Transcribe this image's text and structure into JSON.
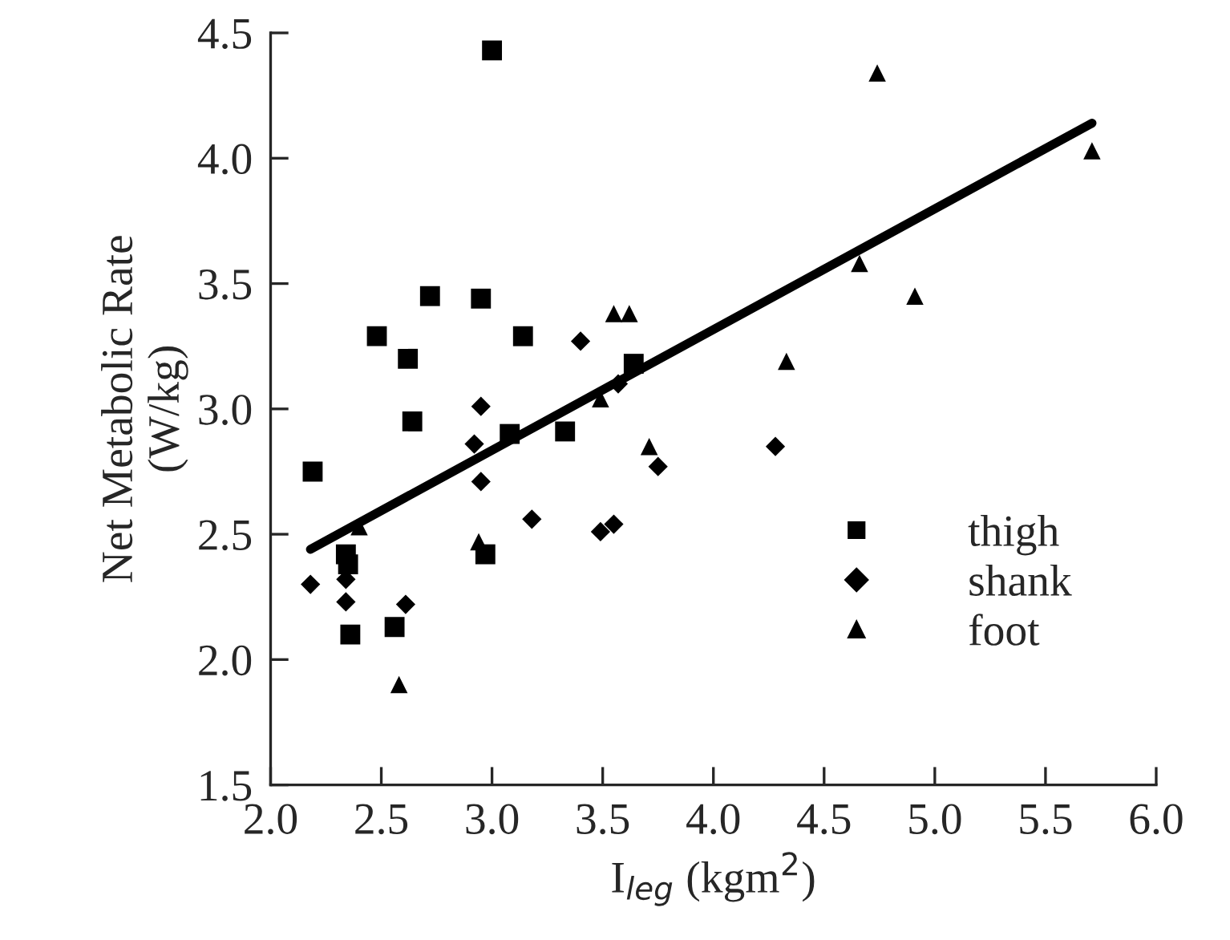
{
  "chart_data": {
    "type": "scatter",
    "xlabel": "I$_{leg}$ (kgm$^{2}$)",
    "ylabel": "Net Metabolic Rate\n(W/kg)",
    "xlim": [
      2.0,
      6.0
    ],
    "xticks": [
      {
        "value": 2.0,
        "label": "2.0"
      },
      {
        "value": 2.5,
        "label": "2.5"
      },
      {
        "value": 3.0,
        "label": "3.0"
      },
      {
        "value": 3.5,
        "label": "3.5"
      },
      {
        "value": 4.0,
        "label": "4.0"
      },
      {
        "value": 4.5,
        "label": "4.5"
      },
      {
        "value": 5.0,
        "label": "5.0"
      },
      {
        "value": 5.5,
        "label": "5.5"
      },
      {
        "value": 6.0,
        "label": "6.0"
      }
    ],
    "ylim": [
      1.5,
      4.5
    ],
    "yticks": [
      1.5,
      {
        "value": 2.0,
        "label": "2.0"
      },
      2.5,
      {
        "value": 3.0,
        "label": "3.0"
      },
      3.5,
      {
        "value": 4.0,
        "label": "4.0"
      },
      4.5
    ],
    "grid": false,
    "legend": "lower right",
    "series": [
      {
        "name": "thigh",
        "color": "#000000",
        "marker": "square",
        "x": [
          3.0,
          2.19,
          2.48,
          2.62,
          2.72,
          2.95,
          3.14,
          3.64,
          2.64,
          3.08,
          3.33,
          2.34,
          2.35,
          2.97,
          2.56,
          2.36
        ],
        "values": [
          4.43,
          2.75,
          3.29,
          3.2,
          3.45,
          3.44,
          3.29,
          3.18,
          2.95,
          2.9,
          2.91,
          2.42,
          2.38,
          2.42,
          2.13,
          2.1
        ]
      },
      {
        "name": "shank",
        "color": "#000000",
        "marker": "diamond",
        "x": [
          3.4,
          2.95,
          2.92,
          2.95,
          3.18,
          3.49,
          3.55,
          3.75,
          2.18,
          2.34,
          2.34,
          2.61,
          3.57,
          4.28
        ],
        "values": [
          3.27,
          3.01,
          2.86,
          2.71,
          2.56,
          2.51,
          2.54,
          2.77,
          2.3,
          2.32,
          2.23,
          2.22,
          3.1,
          2.85
        ]
      },
      {
        "name": "foot",
        "color": "#000000",
        "marker": "triangle",
        "x": [
          3.55,
          3.62,
          3.49,
          3.71,
          2.94,
          2.58,
          2.4,
          4.33,
          4.66,
          4.91,
          4.74,
          5.71
        ],
        "values": [
          3.38,
          3.38,
          3.04,
          2.85,
          2.47,
          1.9,
          2.53,
          3.19,
          3.58,
          3.45,
          4.34,
          4.03
        ]
      },
      {
        "type": "line",
        "color": "#000000",
        "line_style": "solid",
        "x": [
          2.18,
          5.71
        ],
        "values": [
          2.44,
          4.14
        ]
      }
    ]
  }
}
